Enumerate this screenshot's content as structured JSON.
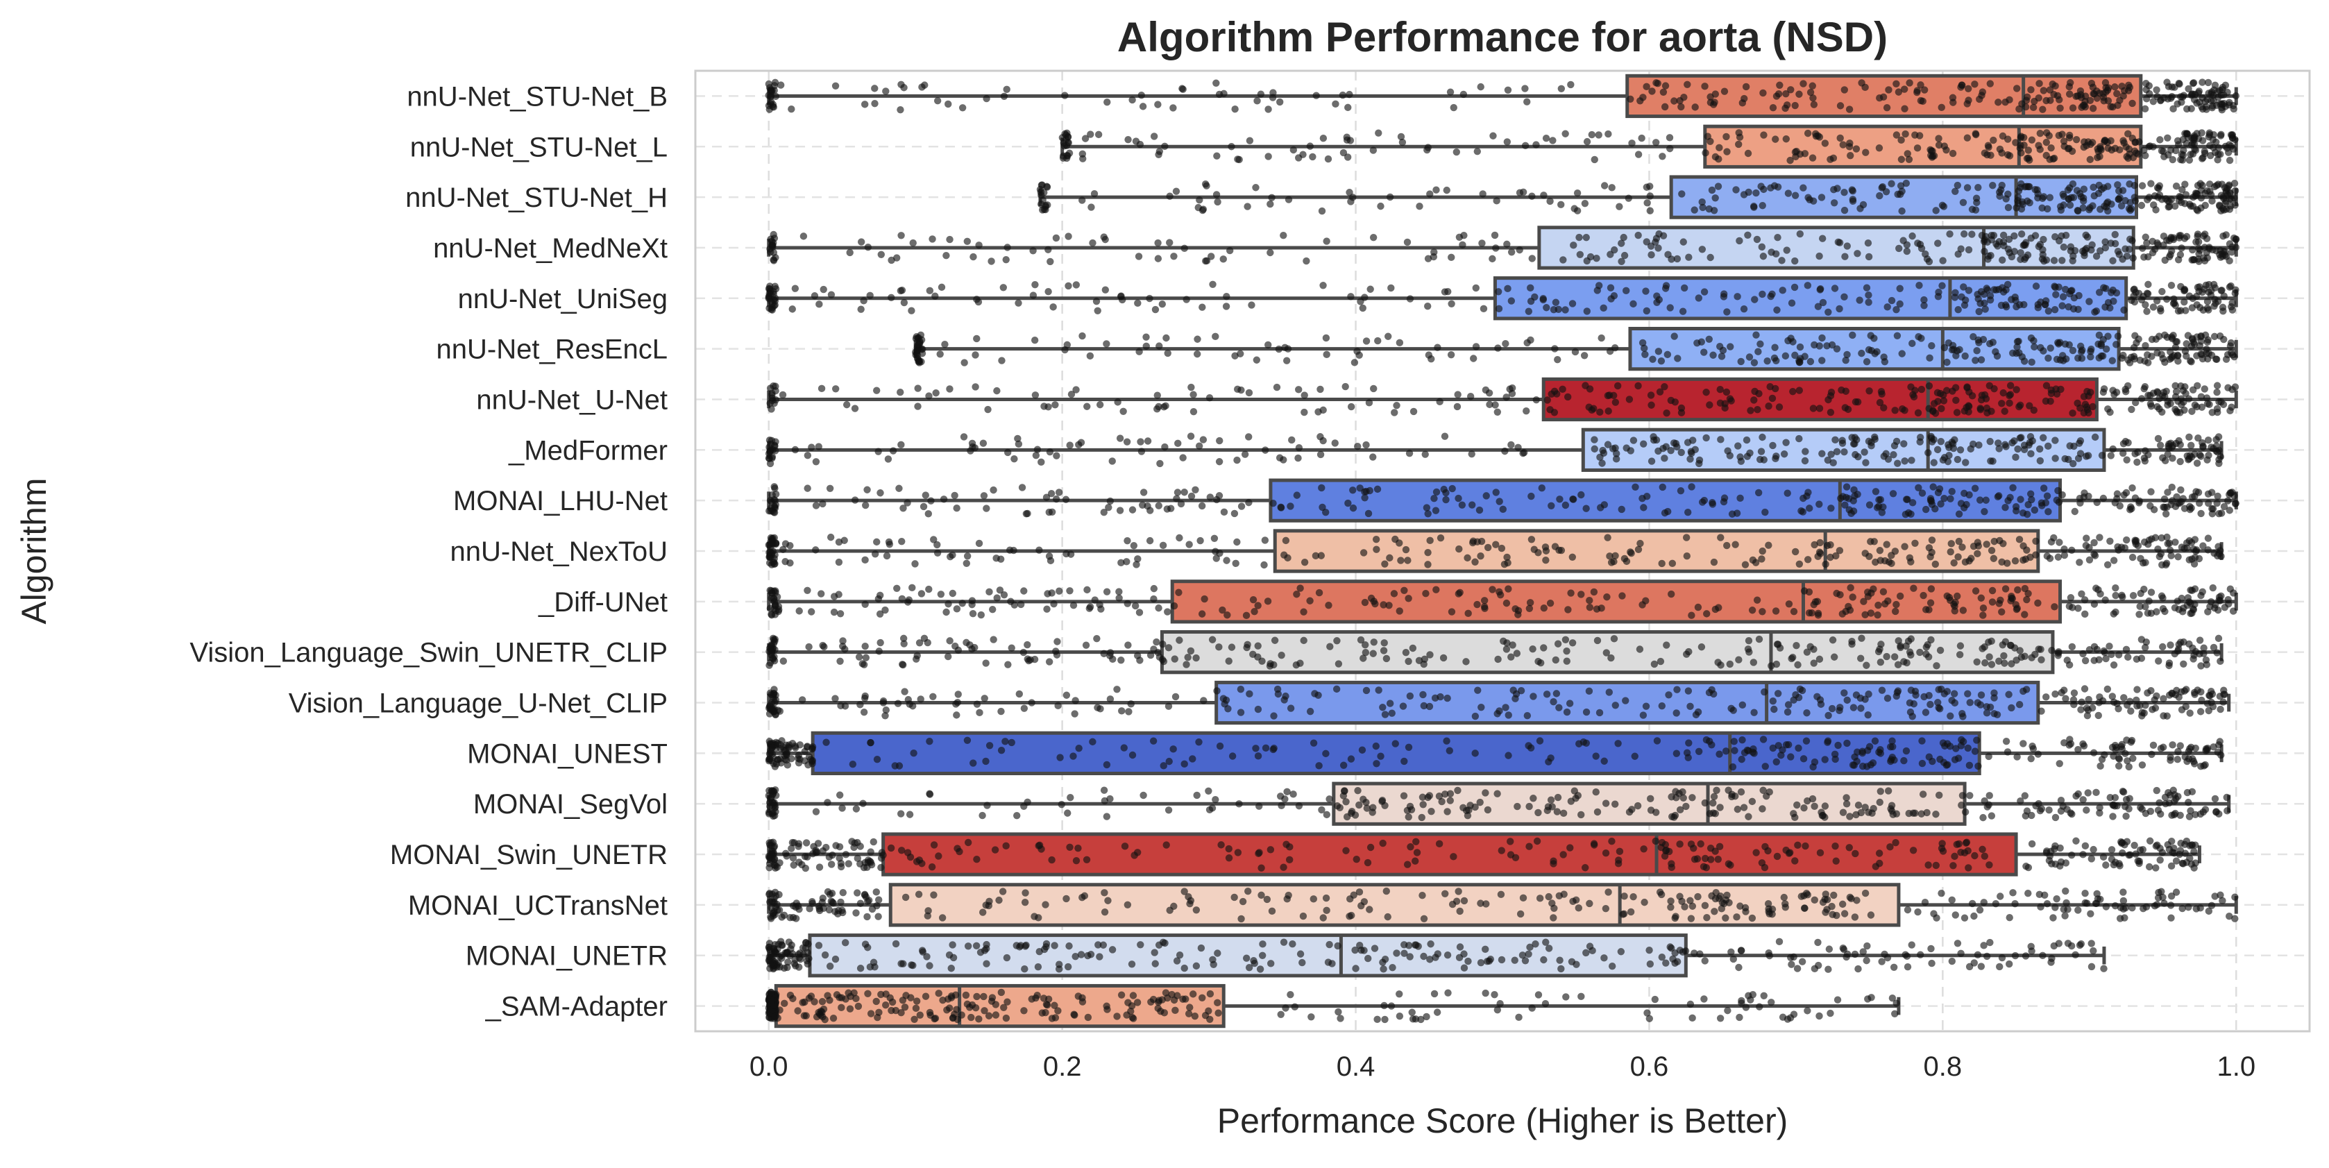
{
  "chart_data": {
    "type": "box",
    "title": "Algorithm Performance for aorta (NSD)",
    "xlabel": "Performance Score (Higher is Better)",
    "ylabel": "Algorithm",
    "xlim": [
      -0.05,
      1.05
    ],
    "xticks": [
      0.0,
      0.2,
      0.4,
      0.6,
      0.8,
      1.0
    ],
    "xtick_labels": [
      "0.0",
      "0.2",
      "0.4",
      "0.6",
      "0.8",
      "1.0"
    ],
    "grid": true,
    "overlay": "jittered strip points (black, semi-transparent)",
    "series": [
      {
        "name": "nnU-Net_STU-Net_B",
        "color": "#e07f66",
        "whisker_low": 0.0,
        "q1": 0.585,
        "median": 0.855,
        "q3": 0.935,
        "whisker_high": 1.0
      },
      {
        "name": "nnU-Net_STU-Net_L",
        "color": "#eda084",
        "whisker_low": 0.2,
        "q1": 0.638,
        "median": 0.852,
        "q3": 0.935,
        "whisker_high": 1.0
      },
      {
        "name": "nnU-Net_STU-Net_H",
        "color": "#8fadf2",
        "whisker_low": 0.185,
        "q1": 0.615,
        "median": 0.85,
        "q3": 0.932,
        "whisker_high": 1.0
      },
      {
        "name": "nnU-Net_MedNeXt",
        "color": "#c5d5f2",
        "whisker_low": 0.0,
        "q1": 0.525,
        "median": 0.828,
        "q3": 0.93,
        "whisker_high": 1.0
      },
      {
        "name": "nnU-Net_UniSeg",
        "color": "#7b9ef0",
        "whisker_low": 0.0,
        "q1": 0.495,
        "median": 0.805,
        "q3": 0.925,
        "whisker_high": 1.0
      },
      {
        "name": "nnU-Net_ResEncL",
        "color": "#8fb0f5",
        "whisker_low": 0.1,
        "q1": 0.587,
        "median": 0.8,
        "q3": 0.92,
        "whisker_high": 1.0
      },
      {
        "name": "nnU-Net_U-Net",
        "color": "#b8242f",
        "whisker_low": 0.0,
        "q1": 0.528,
        "median": 0.79,
        "q3": 0.905,
        "whisker_high": 1.0
      },
      {
        "name": "_MedFormer",
        "color": "#b5ccf8",
        "whisker_low": 0.0,
        "q1": 0.555,
        "median": 0.79,
        "q3": 0.91,
        "whisker_high": 0.99
      },
      {
        "name": "MONAI_LHU-Net",
        "color": "#5f80e0",
        "whisker_low": 0.0,
        "q1": 0.342,
        "median": 0.73,
        "q3": 0.88,
        "whisker_high": 1.0
      },
      {
        "name": "nnU-Net_NexToU",
        "color": "#efbfa6",
        "whisker_low": 0.0,
        "q1": 0.345,
        "median": 0.72,
        "q3": 0.865,
        "whisker_high": 0.99
      },
      {
        "name": "_Diff-UNet",
        "color": "#dd7660",
        "whisker_low": 0.0,
        "q1": 0.275,
        "median": 0.705,
        "q3": 0.88,
        "whisker_high": 1.0
      },
      {
        "name": "Vision_Language_Swin_UNETR_CLIP",
        "color": "#dcdcdc",
        "whisker_low": 0.0,
        "q1": 0.268,
        "median": 0.683,
        "q3": 0.875,
        "whisker_high": 0.99
      },
      {
        "name": "Vision_Language_U-Net_CLIP",
        "color": "#7a99ec",
        "whisker_low": 0.0,
        "q1": 0.305,
        "median": 0.68,
        "q3": 0.865,
        "whisker_high": 0.995
      },
      {
        "name": "MONAI_UNEST",
        "color": "#4a66cc",
        "whisker_low": 0.0,
        "q1": 0.03,
        "median": 0.655,
        "q3": 0.825,
        "whisker_high": 0.99
      },
      {
        "name": "MONAI_SegVol",
        "color": "#ebd8d0",
        "whisker_low": 0.0,
        "q1": 0.385,
        "median": 0.64,
        "q3": 0.815,
        "whisker_high": 0.995
      },
      {
        "name": "MONAI_Swin_UNETR",
        "color": "#c63f3c",
        "whisker_low": 0.0,
        "q1": 0.078,
        "median": 0.605,
        "q3": 0.85,
        "whisker_high": 0.975
      },
      {
        "name": "MONAI_UCTransNet",
        "color": "#f2d2c2",
        "whisker_low": 0.0,
        "q1": 0.083,
        "median": 0.58,
        "q3": 0.77,
        "whisker_high": 1.0
      },
      {
        "name": "MONAI_UNETR",
        "color": "#d2dcee",
        "whisker_low": 0.0,
        "q1": 0.028,
        "median": 0.39,
        "q3": 0.625,
        "whisker_high": 0.91
      },
      {
        "name": "_SAM-Adapter",
        "color": "#eda88c",
        "whisker_low": 0.0,
        "q1": 0.005,
        "median": 0.13,
        "q3": 0.31,
        "whisker_high": 0.77
      }
    ]
  }
}
